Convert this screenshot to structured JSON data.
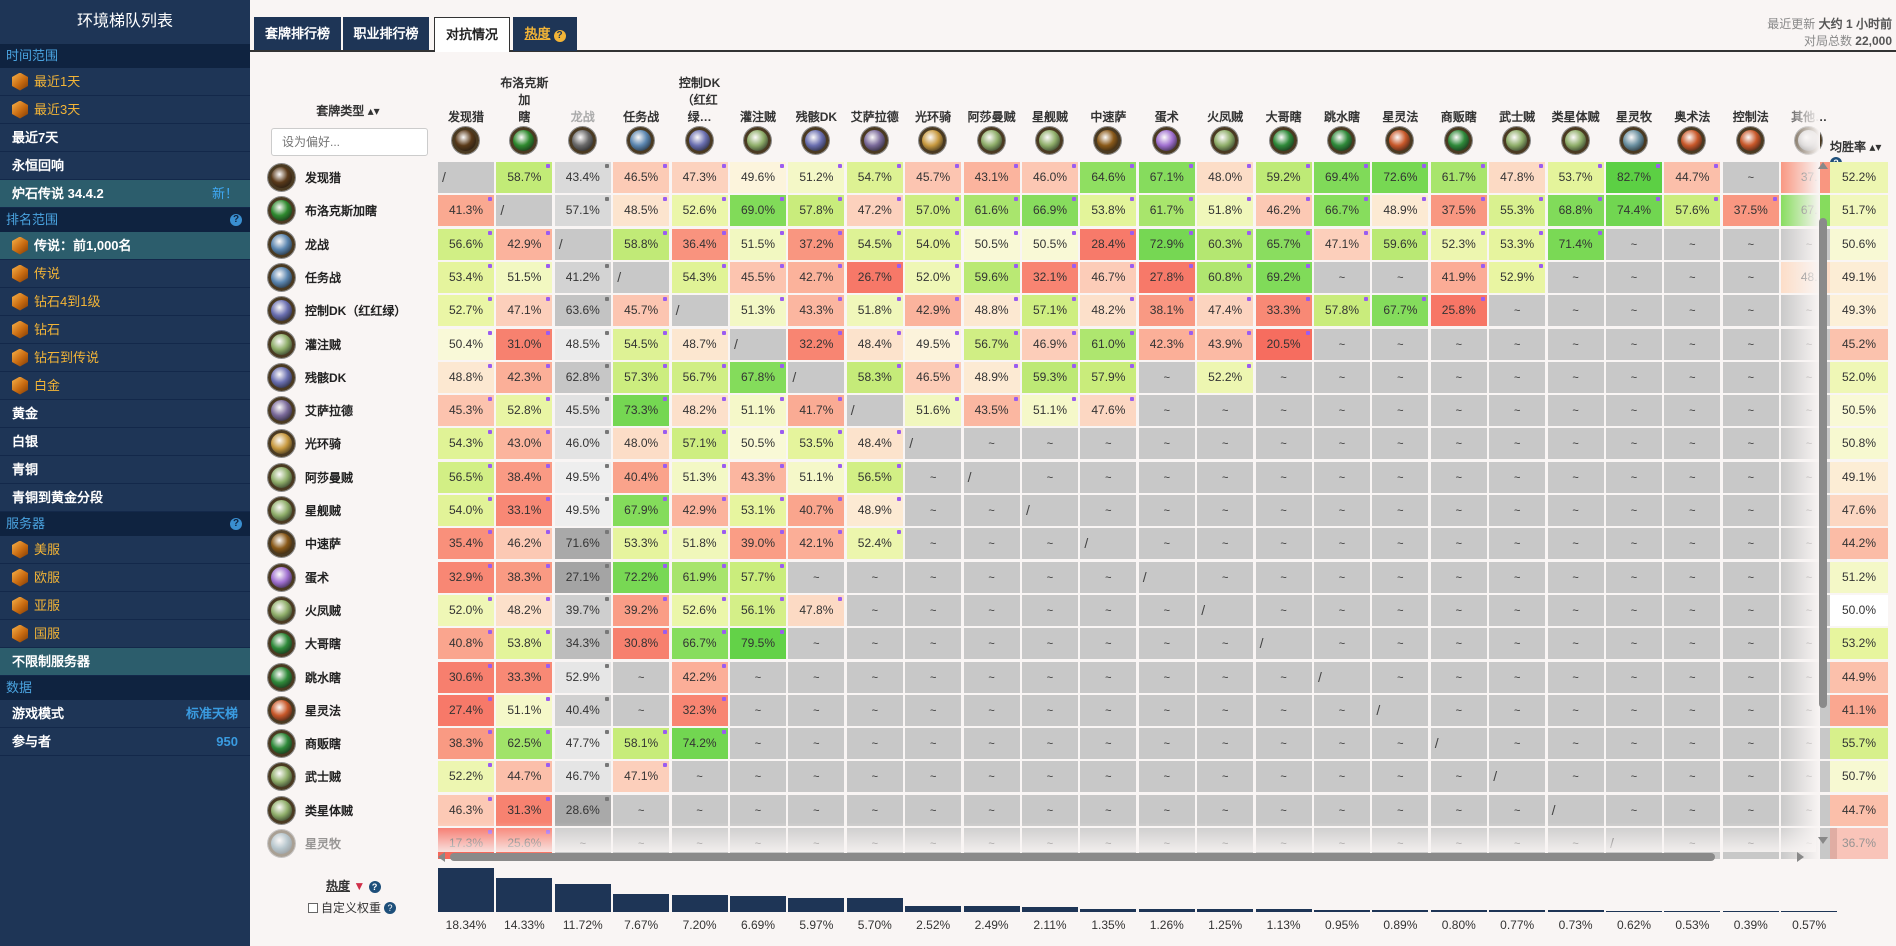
{
  "sidebar": {
    "title": "环境梯队列表",
    "sections": [
      {
        "label": "时间范围",
        "help": false,
        "items": [
          {
            "label": "最近1天",
            "icon": true,
            "style": "gold"
          },
          {
            "label": "最近3天",
            "icon": true,
            "style": "gold"
          },
          {
            "label": "最近7天",
            "icon": false,
            "style": "plain"
          },
          {
            "label": "永恒回响",
            "icon": false,
            "style": "plain"
          },
          {
            "label": "炉石传说 34.4.2",
            "icon": false,
            "style": "active",
            "badge": "新！"
          }
        ]
      },
      {
        "label": "排名范围",
        "help": true,
        "items": [
          {
            "label": "传说：前1,000名",
            "icon": true,
            "style": "active"
          },
          {
            "label": "传说",
            "icon": true,
            "style": "gold"
          },
          {
            "label": "钻石4到1级",
            "icon": true,
            "style": "gold"
          },
          {
            "label": "钻石",
            "icon": true,
            "style": "gold"
          },
          {
            "label": "钻石到传说",
            "icon": true,
            "style": "gold"
          },
          {
            "label": "白金",
            "icon": true,
            "style": "gold"
          },
          {
            "label": "黄金",
            "icon": false,
            "style": "plain"
          },
          {
            "label": "白银",
            "icon": false,
            "style": "plain"
          },
          {
            "label": "青铜",
            "icon": false,
            "style": "plain"
          },
          {
            "label": "青铜到黄金分段",
            "icon": false,
            "style": "plain"
          }
        ]
      },
      {
        "label": "服务器",
        "help": true,
        "items": [
          {
            "label": "美服",
            "icon": true,
            "style": "gold"
          },
          {
            "label": "欧服",
            "icon": true,
            "style": "gold"
          },
          {
            "label": "亚服",
            "icon": true,
            "style": "gold"
          },
          {
            "label": "国服",
            "icon": true,
            "style": "gold"
          },
          {
            "label": "不限制服务器",
            "icon": false,
            "style": "active"
          }
        ]
      },
      {
        "label": "数据",
        "help": false,
        "items": [
          {
            "label": "游戏模式",
            "icon": false,
            "style": "plain",
            "value": "标准天梯"
          },
          {
            "label": "参与者",
            "icon": false,
            "style": "plain",
            "value": "950"
          }
        ]
      }
    ]
  },
  "tabs": [
    {
      "label": "套牌排行榜",
      "active": false
    },
    {
      "label": "职业排行榜",
      "active": false
    },
    {
      "label": "对抗情况",
      "active": true
    },
    {
      "label": "热度",
      "active": false,
      "help": "?"
    }
  ],
  "update": {
    "label": "最近更新",
    "value": "大约 1 小时前",
    "games_label": "对局总数",
    "games_value": "22,000"
  },
  "matrix": {
    "deck_type_header": "套牌类型 ▴▾",
    "filter_placeholder": "设为偏好...",
    "avg_header": "均胜率 ▴▾",
    "columns": [
      {
        "label": "发现猎",
        "color": "#5a3a1a"
      },
      {
        "label": "布洛克斯加\n瞎",
        "color": "#2f8a2f"
      },
      {
        "label": "龙战",
        "color": "#6a6a6a",
        "dim": true
      },
      {
        "label": "任务战",
        "color": "#5b86b0"
      },
      {
        "label": "控制DK\n（红红绿…",
        "color": "#6a6fb0"
      },
      {
        "label": "灌注贼",
        "color": "#8fae6a"
      },
      {
        "label": "残骸DK",
        "color": "#6a6fb0"
      },
      {
        "label": "艾萨拉德",
        "color": "#7a6a9a"
      },
      {
        "label": "光环骑",
        "color": "#c89a40"
      },
      {
        "label": "阿莎曼贼",
        "color": "#8fae6a"
      },
      {
        "label": "星舰贼",
        "color": "#8fae6a"
      },
      {
        "label": "中速萨",
        "color": "#8a5a1a"
      },
      {
        "label": "蛋术",
        "color": "#a070d0"
      },
      {
        "label": "火凤贼",
        "color": "#8fae6a"
      },
      {
        "label": "大哥瞎",
        "color": "#2f8a3a"
      },
      {
        "label": "跳水瞎",
        "color": "#2f8a3a"
      },
      {
        "label": "星灵法",
        "color": "#c8582a"
      },
      {
        "label": "商贩瞎",
        "color": "#2f8a3a"
      },
      {
        "label": "武士贼",
        "color": "#8fae6a"
      },
      {
        "label": "类星体贼",
        "color": "#8fae6a"
      },
      {
        "label": "星灵牧",
        "color": "#6a90a0"
      },
      {
        "label": "奥术法",
        "color": "#c8582a"
      },
      {
        "label": "控制法",
        "color": "#c8582a"
      },
      {
        "label": "其他…",
        "color": "#bbbbbb"
      }
    ],
    "rows": [
      {
        "label": "发现猎",
        "color": "#5a3a1a",
        "avg": "52.2%",
        "cells": [
          "/",
          "58.7%",
          "43.4%",
          "46.5%",
          "47.3%",
          "49.6%",
          "51.2%",
          "54.7%",
          "45.7%",
          "43.1%",
          "46.0%",
          "64.6%",
          "67.1%",
          "48.0%",
          "59.2%",
          "69.4%",
          "72.6%",
          "61.7%",
          "47.8%",
          "53.7%",
          "82.7%",
          "44.7%",
          "~",
          "37."
        ]
      },
      {
        "label": "布洛克斯加瞎",
        "color": "#2f8a2f",
        "avg": "51.7%",
        "cells": [
          "41.3%",
          "/",
          "57.1%",
          "48.5%",
          "52.6%",
          "69.0%",
          "57.8%",
          "47.2%",
          "57.0%",
          "61.6%",
          "66.9%",
          "53.8%",
          "61.7%",
          "51.8%",
          "46.2%",
          "66.7%",
          "48.9%",
          "37.5%",
          "55.3%",
          "68.8%",
          "74.4%",
          "57.6%",
          "37.5%",
          "67."
        ]
      },
      {
        "label": "龙战",
        "color": "#5b86b0",
        "avg": "50.6%",
        "cells": [
          "56.6%",
          "42.9%",
          "/",
          "58.8%",
          "36.4%",
          "51.5%",
          "37.2%",
          "54.5%",
          "54.0%",
          "50.5%",
          "50.5%",
          "28.4%",
          "72.9%",
          "60.3%",
          "65.7%",
          "47.1%",
          "59.6%",
          "52.3%",
          "53.3%",
          "71.4%",
          "~",
          "~",
          "~",
          "~"
        ]
      },
      {
        "label": "任务战",
        "color": "#5b86b0",
        "avg": "49.1%",
        "cells": [
          "53.4%",
          "51.5%",
          "41.2%",
          "/",
          "54.3%",
          "45.5%",
          "42.7%",
          "26.7%",
          "52.0%",
          "59.6%",
          "32.1%",
          "46.7%",
          "27.8%",
          "60.8%",
          "69.2%",
          "~",
          "~",
          "41.9%",
          "52.9%",
          "~",
          "~",
          "~",
          "~",
          "48."
        ]
      },
      {
        "label": "控制DK（红红绿）",
        "color": "#6a6fb0",
        "avg": "49.3%",
        "cells": [
          "52.7%",
          "47.1%",
          "63.6%",
          "45.7%",
          "/",
          "51.3%",
          "43.3%",
          "51.8%",
          "42.9%",
          "48.8%",
          "57.1%",
          "48.2%",
          "38.1%",
          "47.4%",
          "33.3%",
          "57.8%",
          "67.7%",
          "25.8%",
          "~",
          "~",
          "~",
          "~",
          "~",
          "~"
        ]
      },
      {
        "label": "灌注贼",
        "color": "#8fae6a",
        "avg": "45.2%",
        "cells": [
          "50.4%",
          "31.0%",
          "48.5%",
          "54.5%",
          "48.7%",
          "/",
          "32.2%",
          "48.4%",
          "49.5%",
          "56.7%",
          "46.9%",
          "61.0%",
          "42.3%",
          "43.9%",
          "20.5%",
          "~",
          "~",
          "~",
          "~",
          "~",
          "~",
          "~",
          "~",
          "~"
        ]
      },
      {
        "label": "残骸DK",
        "color": "#6a6fb0",
        "avg": "52.0%",
        "cells": [
          "48.8%",
          "42.3%",
          "62.8%",
          "57.3%",
          "56.7%",
          "67.8%",
          "/",
          "58.3%",
          "46.5%",
          "48.9%",
          "59.3%",
          "57.9%",
          "~",
          "52.2%",
          "~",
          "~",
          "~",
          "~",
          "~",
          "~",
          "~",
          "~",
          "~",
          "~"
        ]
      },
      {
        "label": "艾萨拉德",
        "color": "#7a6a9a",
        "avg": "50.5%",
        "cells": [
          "45.3%",
          "52.8%",
          "45.5%",
          "73.3%",
          "48.2%",
          "51.1%",
          "41.7%",
          "/",
          "51.6%",
          "43.5%",
          "51.1%",
          "47.6%",
          "~",
          "~",
          "~",
          "~",
          "~",
          "~",
          "~",
          "~",
          "~",
          "~",
          "~",
          "~"
        ]
      },
      {
        "label": "光环骑",
        "color": "#c89a40",
        "avg": "50.8%",
        "cells": [
          "54.3%",
          "43.0%",
          "46.0%",
          "48.0%",
          "57.1%",
          "50.5%",
          "53.5%",
          "48.4%",
          "/",
          "~",
          "~",
          "~",
          "~",
          "~",
          "~",
          "~",
          "~",
          "~",
          "~",
          "~",
          "~",
          "~",
          "~",
          "~"
        ]
      },
      {
        "label": "阿莎曼贼",
        "color": "#8fae6a",
        "avg": "49.1%",
        "cells": [
          "56.5%",
          "38.4%",
          "49.5%",
          "40.4%",
          "51.3%",
          "43.3%",
          "51.1%",
          "56.5%",
          "~",
          "/",
          "~",
          "~",
          "~",
          "~",
          "~",
          "~",
          "~",
          "~",
          "~",
          "~",
          "~",
          "~",
          "~",
          "~"
        ]
      },
      {
        "label": "星舰贼",
        "color": "#8fae6a",
        "avg": "47.6%",
        "cells": [
          "54.0%",
          "33.1%",
          "49.5%",
          "67.9%",
          "42.9%",
          "53.1%",
          "40.7%",
          "48.9%",
          "~",
          "~",
          "/",
          "~",
          "~",
          "~",
          "~",
          "~",
          "~",
          "~",
          "~",
          "~",
          "~",
          "~",
          "~",
          "~"
        ]
      },
      {
        "label": "中速萨",
        "color": "#8a5a1a",
        "avg": "44.2%",
        "cells": [
          "35.4%",
          "46.2%",
          "71.6%",
          "53.3%",
          "51.8%",
          "39.0%",
          "42.1%",
          "52.4%",
          "~",
          "~",
          "~",
          "/",
          "~",
          "~",
          "~",
          "~",
          "~",
          "~",
          "~",
          "~",
          "~",
          "~",
          "~",
          "~"
        ]
      },
      {
        "label": "蛋术",
        "color": "#a070d0",
        "avg": "51.2%",
        "cells": [
          "32.9%",
          "38.3%",
          "27.1%",
          "72.2%",
          "61.9%",
          "57.7%",
          "~",
          "~",
          "~",
          "~",
          "~",
          "~",
          "/",
          "~",
          "~",
          "~",
          "~",
          "~",
          "~",
          "~",
          "~",
          "~",
          "~",
          "~"
        ]
      },
      {
        "label": "火凤贼",
        "color": "#8fae6a",
        "avg": "50.0%",
        "cells": [
          "52.0%",
          "48.2%",
          "39.7%",
          "39.2%",
          "52.6%",
          "56.1%",
          "47.8%",
          "~",
          "~",
          "~",
          "~",
          "~",
          "~",
          "/",
          "~",
          "~",
          "~",
          "~",
          "~",
          "~",
          "~",
          "~",
          "~",
          "~"
        ]
      },
      {
        "label": "大哥瞎",
        "color": "#2f8a3a",
        "avg": "53.2%",
        "cells": [
          "40.8%",
          "53.8%",
          "34.3%",
          "30.8%",
          "66.7%",
          "79.5%",
          "~",
          "~",
          "~",
          "~",
          "~",
          "~",
          "~",
          "~",
          "/",
          "~",
          "~",
          "~",
          "~",
          "~",
          "~",
          "~",
          "~",
          "~"
        ]
      },
      {
        "label": "跳水瞎",
        "color": "#2f8a3a",
        "avg": "44.9%",
        "cells": [
          "30.6%",
          "33.3%",
          "52.9%",
          "~",
          "42.2%",
          "~",
          "~",
          "~",
          "~",
          "~",
          "~",
          "~",
          "~",
          "~",
          "~",
          "/",
          "~",
          "~",
          "~",
          "~",
          "~",
          "~",
          "~",
          "~"
        ]
      },
      {
        "label": "星灵法",
        "color": "#c8582a",
        "avg": "41.1%",
        "cells": [
          "27.4%",
          "51.1%",
          "40.4%",
          "~",
          "32.3%",
          "~",
          "~",
          "~",
          "~",
          "~",
          "~",
          "~",
          "~",
          "~",
          "~",
          "~",
          "/",
          "~",
          "~",
          "~",
          "~",
          "~",
          "~",
          "~"
        ]
      },
      {
        "label": "商贩瞎",
        "color": "#2f8a3a",
        "avg": "55.7%",
        "cells": [
          "38.3%",
          "62.5%",
          "47.7%",
          "58.1%",
          "74.2%",
          "~",
          "~",
          "~",
          "~",
          "~",
          "~",
          "~",
          "~",
          "~",
          "~",
          "~",
          "~",
          "/",
          "~",
          "~",
          "~",
          "~",
          "~",
          "~"
        ]
      },
      {
        "label": "武士贼",
        "color": "#8fae6a",
        "avg": "50.7%",
        "cells": [
          "52.2%",
          "44.7%",
          "46.7%",
          "47.1%",
          "~",
          "~",
          "~",
          "~",
          "~",
          "~",
          "~",
          "~",
          "~",
          "~",
          "~",
          "~",
          "~",
          "~",
          "/",
          "~",
          "~",
          "~",
          "~",
          "~"
        ]
      },
      {
        "label": "类星体贼",
        "color": "#8fae6a",
        "avg": "44.7%",
        "cells": [
          "46.3%",
          "31.3%",
          "28.6%",
          "~",
          "~",
          "~",
          "~",
          "~",
          "~",
          "~",
          "~",
          "~",
          "~",
          "~",
          "~",
          "~",
          "~",
          "~",
          "~",
          "/",
          "~",
          "~",
          "~",
          "~"
        ]
      },
      {
        "label": "星灵牧",
        "color": "#6a90a0",
        "avg": "36.7%",
        "cells": [
          "17.3%",
          "25.6%",
          "~",
          "~",
          "~",
          "~",
          "~",
          "~",
          "~",
          "~",
          "~",
          "~",
          "~",
          "~",
          "~",
          "~",
          "~",
          "~",
          "~",
          "~",
          "/",
          "~",
          "~",
          "~"
        ]
      }
    ]
  },
  "popularity": {
    "label": "热度",
    "custom_weights_label": "自定义权重",
    "values": [
      "18.34%",
      "14.33%",
      "11.72%",
      "7.67%",
      "7.20%",
      "6.69%",
      "5.97%",
      "5.70%",
      "2.52%",
      "2.49%",
      "2.11%",
      "1.35%",
      "1.26%",
      "1.25%",
      "1.13%",
      "0.95%",
      "0.89%",
      "0.80%",
      "0.77%",
      "0.73%",
      "0.62%",
      "0.53%",
      "0.39%",
      "0.57%"
    ]
  },
  "colors": {
    "sidebar": "#1e3556",
    "accent_gold": "#f2b437",
    "accent_blue": "#3a9be0",
    "cell_na": "#c8c8c8",
    "dot": "#9b5cf0",
    "bar": "#1e3556"
  }
}
